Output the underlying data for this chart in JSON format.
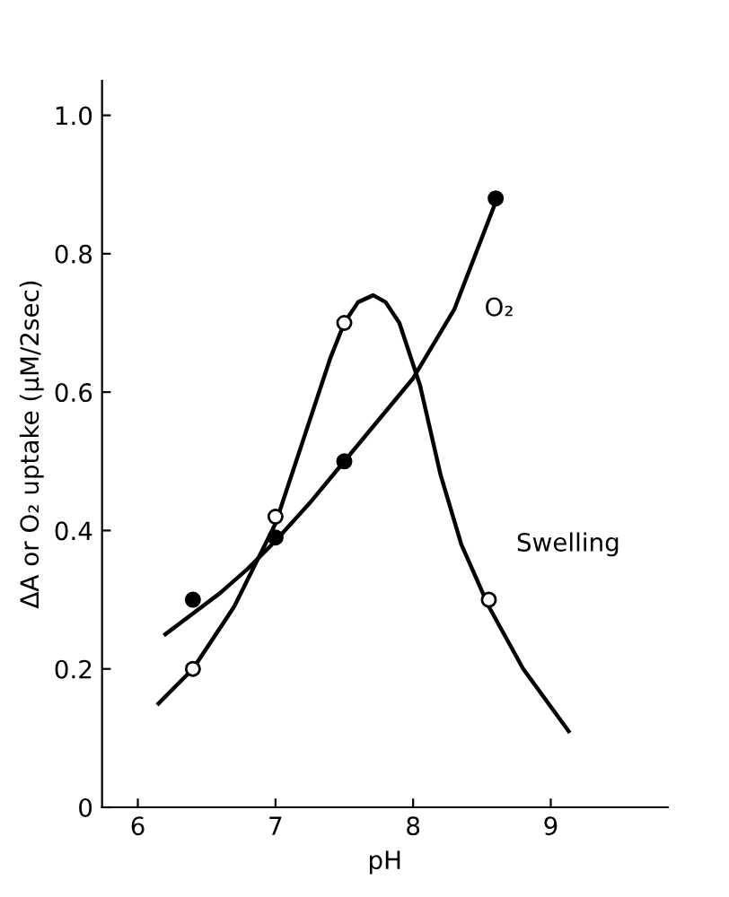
{
  "chart_data": {
    "type": "scatter",
    "xlabel": "pH",
    "ylabel": "ΔA or O₂ uptake (μM/2sec)",
    "xlim": [
      5.74,
      9.85
    ],
    "ylim": [
      0,
      1.05
    ],
    "xticks": [
      6,
      7,
      8,
      9
    ],
    "yticks": [
      0,
      0.2,
      0.4,
      0.6,
      0.8,
      {
        "value": 1,
        "label": "1.0"
      }
    ],
    "grid": false,
    "legend": false,
    "series": [
      {
        "type": "line",
        "name": "O₂",
        "color": "#000000",
        "marker": "none",
        "x": [
          6.2,
          6.4,
          6.6,
          6.8,
          7.0,
          7.25,
          7.5,
          7.75,
          8.0,
          8.3,
          8.6
        ],
        "values": [
          0.25,
          0.28,
          0.31,
          0.345,
          0.385,
          0.44,
          0.5,
          0.56,
          0.62,
          0.72,
          0.875
        ]
      },
      {
        "type": "line",
        "name": "Swelling",
        "color": "#000000",
        "marker": "none",
        "x": [
          6.15,
          6.4,
          6.7,
          7.0,
          7.2,
          7.4,
          7.5,
          7.6,
          7.71,
          7.8,
          7.9,
          8.05,
          8.2,
          8.35,
          8.55,
          8.8,
          9.13
        ],
        "values": [
          0.15,
          0.2,
          0.29,
          0.41,
          0.53,
          0.65,
          0.7,
          0.73,
          0.74,
          0.73,
          0.7,
          0.61,
          0.48,
          0.38,
          0.29,
          0.2,
          0.11
        ]
      },
      {
        "color": "#000000",
        "marker": "circle",
        "x": [
          6.4,
          7.0,
          7.5,
          8.6
        ],
        "values": [
          0.3,
          0.39,
          0.5,
          0.88
        ]
      },
      {
        "color": "#ffffff",
        "marker": "circle",
        "x": [
          6.4,
          7.0,
          7.5,
          8.55
        ],
        "values": [
          0.2,
          0.42,
          0.7,
          0.3
        ]
      }
    ]
  }
}
